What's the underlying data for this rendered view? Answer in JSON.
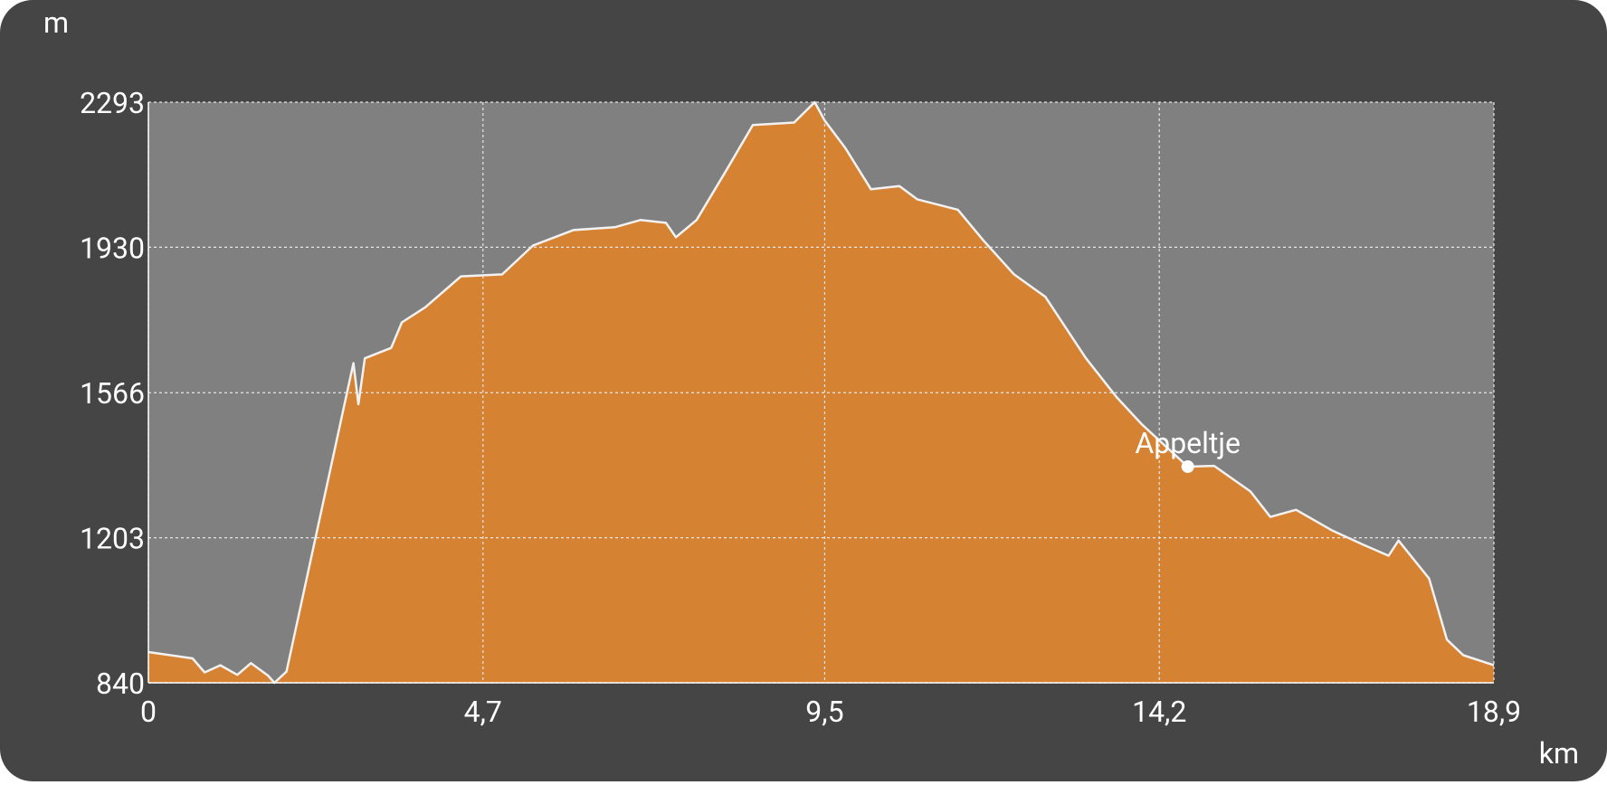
{
  "chart_data": {
    "type": "area",
    "y_unit": "m",
    "x_unit": "km",
    "x": [
      0,
      0.62,
      0.79,
      1.01,
      1.25,
      1.44,
      1.68,
      1.77,
      1.94,
      2.88,
      2.95,
      3.04,
      3.41,
      3.56,
      3.89,
      4.39,
      4.97,
      5.4,
      5.97,
      6.55,
      6.91,
      7.27,
      7.41,
      7.7,
      8.13,
      8.49,
      9.07,
      9.36,
      9.5,
      9.79,
      10.15,
      10.55,
      10.8,
      11.37,
      11.73,
      12.16,
      12.6,
      13.17,
      13.6,
      13.96,
      14.6,
      14.97,
      15.48,
      15.76,
      16.12,
      16.62,
      17.06,
      17.42,
      17.56,
      17.99,
      18.24,
      18.47,
      18.9
    ],
    "values": [
      917,
      901,
      866,
      884,
      860,
      889,
      858,
      840,
      868,
      1640,
      1537,
      1652,
      1678,
      1742,
      1780,
      1857,
      1862,
      1934,
      1973,
      1980,
      1998,
      1991,
      1955,
      1998,
      2126,
      2236,
      2242,
      2293,
      2247,
      2178,
      2075,
      2083,
      2050,
      2024,
      1947,
      1862,
      1806,
      1652,
      1555,
      1486,
      1381,
      1383,
      1319,
      1255,
      1273,
      1222,
      1186,
      1158,
      1196,
      1101,
      948,
      909,
      884
    ],
    "color": "#d68233",
    "line_color": "#f2f2f2",
    "plot_background": "#808080",
    "xlim": [
      0,
      18.9
    ],
    "ylim": [
      840,
      2293
    ],
    "xticks": [
      0,
      {
        "value": 4.7,
        "label": "4,7"
      },
      {
        "value": 9.5,
        "label": "9,5"
      },
      {
        "value": 14.2,
        "label": "14,2"
      },
      {
        "value": 18.9,
        "label": "18,9"
      }
    ],
    "yticks": [
      840,
      1203,
      1566,
      1930,
      2293
    ],
    "grid": true,
    "annotation": {
      "text": "Appeltje",
      "x": 14.6,
      "y": 1381
    }
  }
}
